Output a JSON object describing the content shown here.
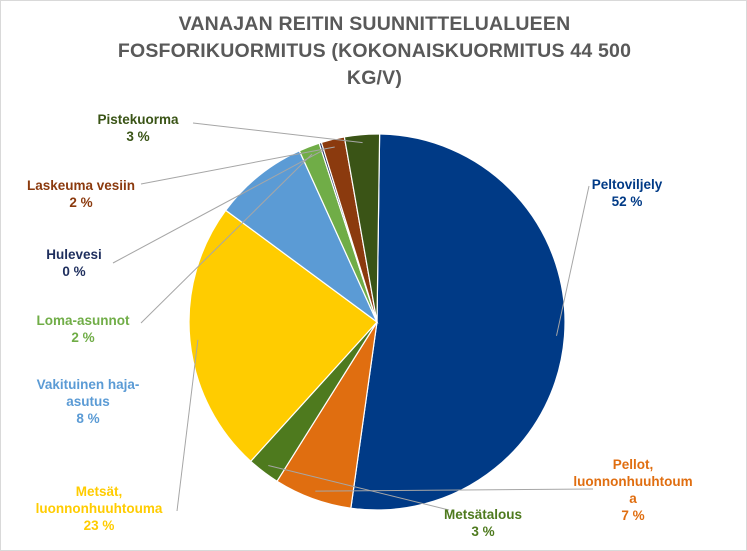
{
  "chart_data": {
    "type": "pie",
    "title_lines": [
      "VANAJAN REITIN SUUNNITTELUALUEEN",
      "FOSFORIKUORMITUS (KOKONAISKUORMITUS 44 500",
      "KG/V)"
    ],
    "slices": [
      {
        "label_lines": [
          "Peltoviljely"
        ],
        "value_label": "52 %",
        "value": 52,
        "color": "#003A86"
      },
      {
        "label_lines": [
          "Pellot,",
          "luonnonhuuhtoum",
          "a"
        ],
        "value_label": "7 %",
        "value": 6.7,
        "color": "#E06E10"
      },
      {
        "label_lines": [
          "Metsätalous"
        ],
        "value_label": "3 %",
        "value": 2.8,
        "color": "#4E7A1E"
      },
      {
        "label_lines": [
          "Metsät,",
          "luonnonhuuhtouma"
        ],
        "value_label": "23 %",
        "value": 23.4,
        "color": "#FFCC00"
      },
      {
        "label_lines": [
          "Vakituinen haja-",
          "asutus"
        ],
        "value_label": "8 %",
        "value": 8.1,
        "color": "#5B9BD5"
      },
      {
        "label_lines": [
          "Loma-asunnot"
        ],
        "value_label": "2 %",
        "value": 1.8,
        "color": "#70AD47"
      },
      {
        "label_lines": [
          "Hulevesi"
        ],
        "value_label": "0 %",
        "value": 0.2,
        "color": "#1F2F5E"
      },
      {
        "label_lines": [
          "Laskeuma vesiin"
        ],
        "value_label": "2 %",
        "value": 2.0,
        "color": "#8B3A0E"
      },
      {
        "label_lines": [
          "Pistekuorma"
        ],
        "value_label": "3 %",
        "value": 3.0,
        "color": "#3A5416"
      }
    ]
  }
}
